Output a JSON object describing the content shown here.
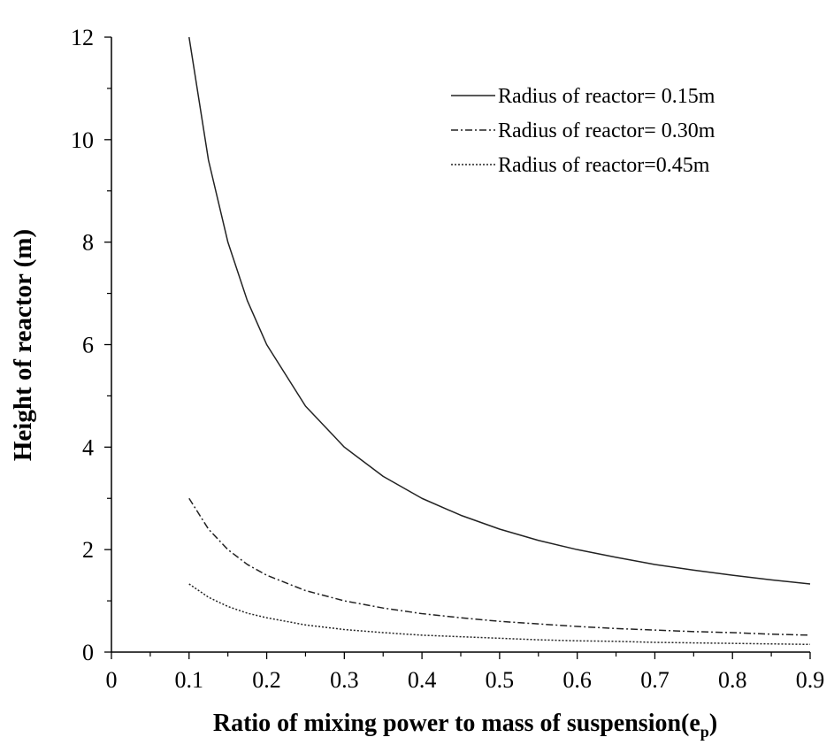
{
  "chart_data": {
    "type": "line",
    "xlabel": "Ratio of mixing power to mass of suspension(e",
    "xlabel_subscript": "p",
    "xlabel_suffix": ")",
    "ylabel": "Height of reactor  (m)",
    "xlim": [
      0,
      0.9
    ],
    "ylim": [
      0,
      12
    ],
    "x_ticks": [
      "0",
      "0.1",
      "0.2",
      "0.3",
      "0.4",
      "0.5",
      "0.6",
      "0.7",
      "0.8",
      "0.9"
    ],
    "y_ticks": [
      "0",
      "2",
      "4",
      "6",
      "8",
      "10",
      "12"
    ],
    "legend_position": "top-right",
    "grid": false,
    "series": [
      {
        "name": "Radius of reactor= 0.15m",
        "style": "solid",
        "x": [
          0.1,
          0.125,
          0.15,
          0.175,
          0.2,
          0.25,
          0.3,
          0.35,
          0.4,
          0.45,
          0.5,
          0.55,
          0.6,
          0.65,
          0.7,
          0.75,
          0.8,
          0.85,
          0.9
        ],
        "y": [
          12.0,
          9.6,
          8.0,
          6.86,
          6.0,
          4.8,
          4.0,
          3.43,
          3.0,
          2.67,
          2.4,
          2.18,
          2.0,
          1.85,
          1.71,
          1.6,
          1.5,
          1.41,
          1.33
        ]
      },
      {
        "name": "Radius of reactor= 0.30m",
        "style": "dashdot",
        "x": [
          0.1,
          0.125,
          0.15,
          0.175,
          0.2,
          0.25,
          0.3,
          0.35,
          0.4,
          0.45,
          0.5,
          0.55,
          0.6,
          0.65,
          0.7,
          0.75,
          0.8,
          0.85,
          0.9
        ],
        "y": [
          3.0,
          2.4,
          2.0,
          1.71,
          1.5,
          1.2,
          1.0,
          0.86,
          0.75,
          0.67,
          0.6,
          0.55,
          0.5,
          0.46,
          0.43,
          0.4,
          0.38,
          0.35,
          0.33
        ]
      },
      {
        "name": "Radius of reactor=0.45m",
        "style": "dotted",
        "x": [
          0.1,
          0.125,
          0.15,
          0.175,
          0.2,
          0.25,
          0.3,
          0.35,
          0.4,
          0.45,
          0.5,
          0.55,
          0.6,
          0.65,
          0.7,
          0.75,
          0.8,
          0.85,
          0.9
        ],
        "y": [
          1.33,
          1.07,
          0.89,
          0.76,
          0.67,
          0.53,
          0.44,
          0.38,
          0.33,
          0.3,
          0.27,
          0.24,
          0.22,
          0.21,
          0.19,
          0.18,
          0.17,
          0.16,
          0.15
        ]
      }
    ]
  }
}
